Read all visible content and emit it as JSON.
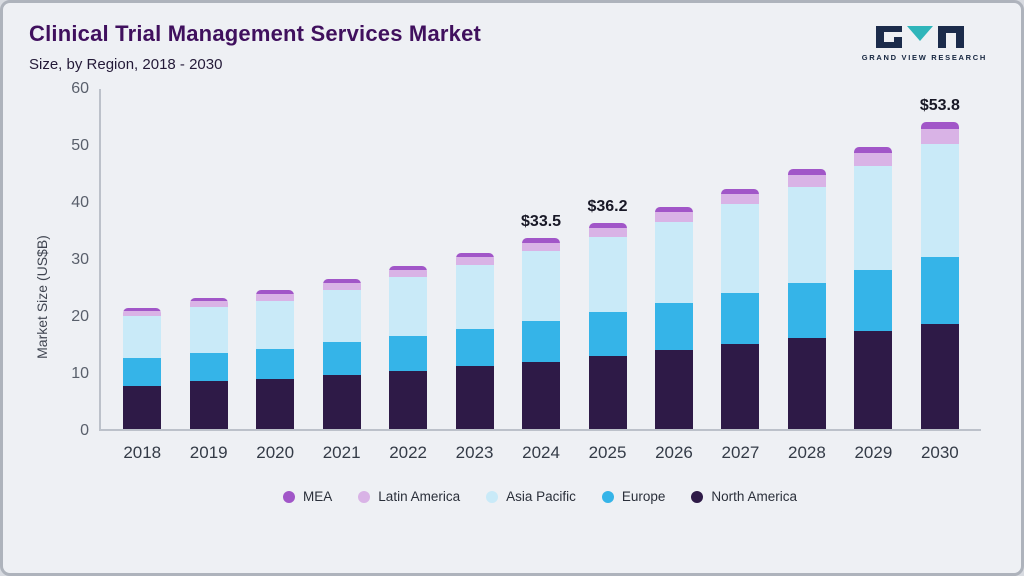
{
  "header": {
    "title": "Clinical Trial Management Services Market",
    "subtitle": "Size, by Region, 2018 - 2030",
    "logo_text": "GRAND VIEW RESEARCH"
  },
  "chart_data": {
    "type": "bar",
    "stacked": true,
    "title": "Clinical Trial Management Services Market Size, by Region, 2018 - 2030",
    "xlabel": "",
    "ylabel": "Market Size (US$B)",
    "ylim": [
      0,
      60
    ],
    "yticks": [
      0,
      10,
      20,
      30,
      40,
      50,
      60
    ],
    "grid": false,
    "legend_position": "bottom",
    "categories": [
      "2018",
      "2019",
      "2020",
      "2021",
      "2022",
      "2023",
      "2024",
      "2025",
      "2026",
      "2027",
      "2028",
      "2029",
      "2030"
    ],
    "series": [
      {
        "name": "MEA",
        "color": "#a156c8",
        "values": [
          0.5,
          0.6,
          0.7,
          0.7,
          0.7,
          0.7,
          0.8,
          0.9,
          0.9,
          0.9,
          1.1,
          1.1,
          1.2
        ]
      },
      {
        "name": "Latin America",
        "color": "#d9b3e6",
        "values": [
          0.9,
          1.0,
          1.1,
          1.2,
          1.2,
          1.4,
          1.5,
          1.6,
          1.7,
          1.8,
          2.0,
          2.3,
          2.6
        ]
      },
      {
        "name": "Asia Pacific",
        "color": "#c9eaf8",
        "values": [
          7.4,
          8.0,
          8.4,
          9.2,
          10.3,
          11.2,
          12.2,
          13.2,
          14.3,
          15.6,
          16.8,
          18.2,
          19.9
        ]
      },
      {
        "name": "Europe",
        "color": "#35b4e8",
        "values": [
          4.8,
          5.0,
          5.3,
          5.7,
          6.2,
          6.6,
          7.2,
          7.7,
          8.3,
          9.0,
          9.8,
          10.7,
          11.6
        ]
      },
      {
        "name": "North America",
        "color": "#2e1a47",
        "values": [
          7.6,
          8.4,
          8.8,
          9.5,
          10.2,
          11.0,
          11.8,
          12.8,
          13.8,
          14.9,
          15.9,
          17.2,
          18.5
        ]
      }
    ],
    "totals": [
      21.2,
      23.0,
      24.3,
      26.3,
      28.6,
      30.9,
      33.5,
      36.2,
      39.0,
      42.2,
      45.6,
      49.5,
      53.8
    ],
    "annotations": [
      {
        "category": "2024",
        "text": "$33.5"
      },
      {
        "category": "2025",
        "text": "$36.2"
      },
      {
        "category": "2030",
        "text": "$53.8"
      }
    ]
  }
}
